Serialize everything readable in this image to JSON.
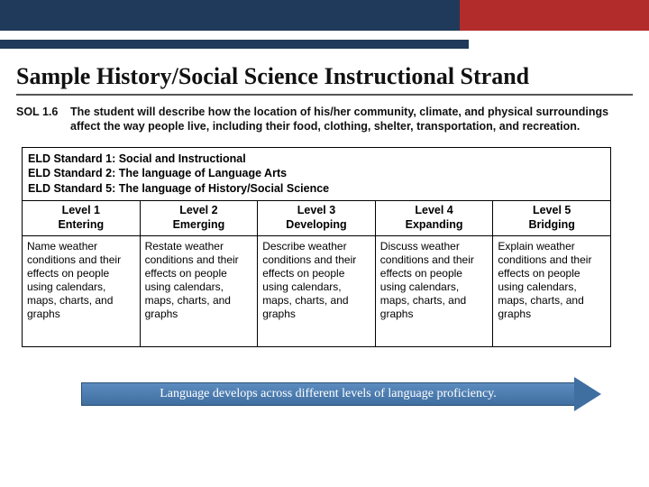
{
  "page": {
    "title": "Sample History/Social Science Instructional Strand"
  },
  "sol": {
    "label": "SOL 1.6",
    "text": "The student will describe how the location of his/her community, climate, and physical surroundings affect the way people live, including their food, clothing, shelter, transportation, and recreation."
  },
  "eld": {
    "lines": [
      "ELD Standard 1: Social and Instructional",
      "ELD Standard 2: The language of Language Arts",
      "ELD Standard 5: The language of History/Social Science"
    ]
  },
  "levels": [
    {
      "num": "Level 1",
      "name": "Entering"
    },
    {
      "num": "Level 2",
      "name": "Emerging"
    },
    {
      "num": "Level 3",
      "name": "Developing"
    },
    {
      "num": "Level 4",
      "name": "Expanding"
    },
    {
      "num": "Level 5",
      "name": "Bridging"
    }
  ],
  "descriptions": [
    "Name weather conditions and their effects on people using calendars, maps, charts, and graphs",
    "Restate weather conditions and their effects on people using calendars, maps, charts, and graphs",
    "Describe weather conditions and their effects on people using calendars, maps, charts, and graphs",
    "Discuss weather conditions and their effects on people using calendars, maps, charts, and graphs",
    "Explain weather conditions and their effects on people using calendars, maps, charts, and graphs"
  ],
  "arrow": {
    "text": "Language develops across different levels of language proficiency."
  },
  "colors": {
    "red": "#b22c2c",
    "navy": "#1f3a5a",
    "arrow_fill": "#3f6ea1"
  }
}
